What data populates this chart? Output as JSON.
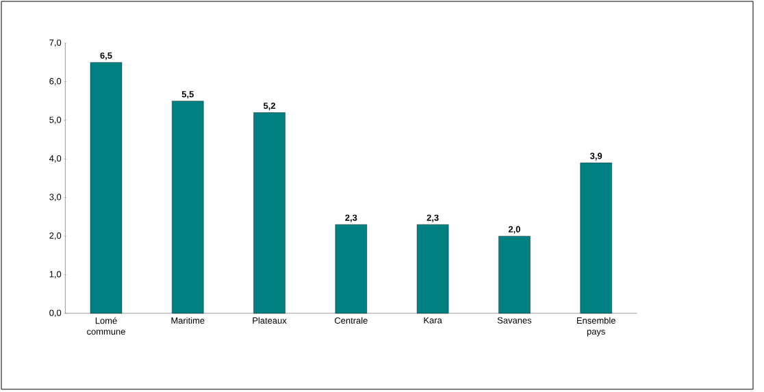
{
  "chart_data": {
    "type": "bar",
    "categories": [
      "Lomé commune",
      "Maritime",
      "Plateaux",
      "Centrale",
      "Kara",
      "Savanes",
      "Ensemble pays"
    ],
    "values": [
      6.5,
      5.5,
      5.2,
      2.3,
      2.3,
      2.0,
      3.9
    ],
    "value_labels": [
      "6,5",
      "5,5",
      "5,2",
      "2,3",
      "2,3",
      "2,0",
      "3,9"
    ],
    "color": "#008080",
    "ylim": [
      0,
      7
    ],
    "yticks": [
      {
        "value": 0,
        "label": "0,0"
      },
      {
        "value": 1,
        "label": "1,0"
      },
      {
        "value": 2,
        "label": "2,0"
      },
      {
        "value": 3,
        "label": "3,0"
      },
      {
        "value": 4,
        "label": "4,0"
      },
      {
        "value": 5,
        "label": "5,0"
      },
      {
        "value": 6,
        "label": "6,0"
      },
      {
        "value": 7,
        "label": "7,0"
      }
    ]
  }
}
